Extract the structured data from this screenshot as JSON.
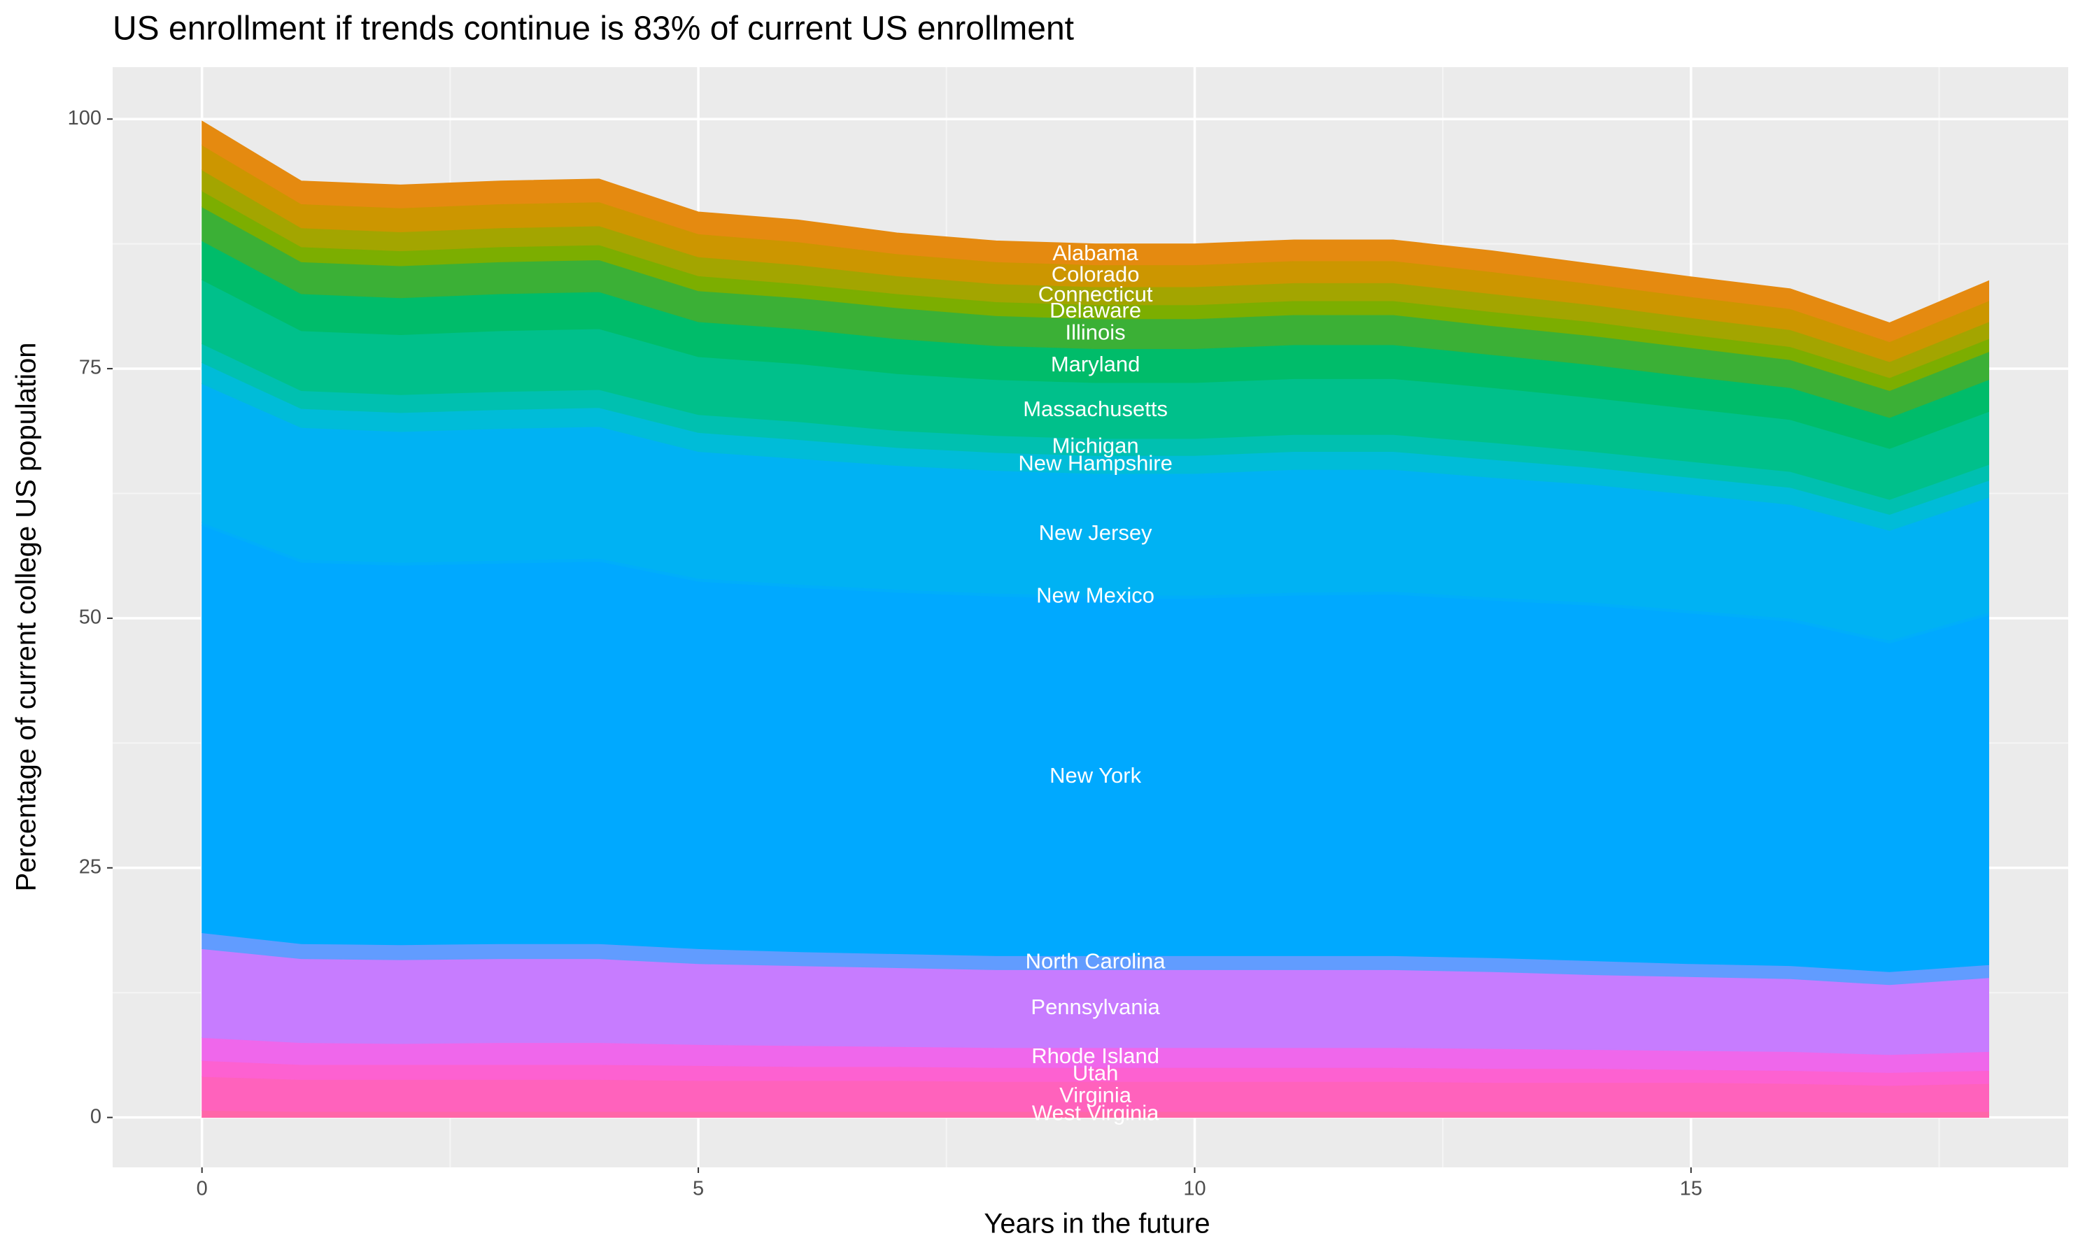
{
  "chart_data": {
    "type": "area",
    "title": "US enrollment if trends continue is 83% of current US enrollment",
    "x_label": "Years in the future",
    "y_label": "Percentage of current college US population",
    "x": [
      0,
      1,
      2,
      3,
      4,
      5,
      6,
      7,
      8,
      9,
      10,
      11,
      12,
      13,
      14,
      15,
      16,
      17,
      18
    ],
    "xlim": [
      -0.9,
      18.8
    ],
    "xticks": [
      0,
      5,
      10,
      15
    ],
    "ylim": [
      -5,
      105.2
    ],
    "yticks": [
      0,
      25,
      50,
      75,
      100
    ],
    "grid": true,
    "series": [
      {
        "name": "West Virginia",
        "color": "#ff66a8",
        "values": [
          0.7,
          0.6,
          0.6,
          0.6,
          0.6,
          0.6,
          0.6,
          0.6,
          0.6,
          0.6,
          0.6,
          0.6,
          0.6,
          0.6,
          0.6,
          0.6,
          0.6,
          0.5,
          0.6
        ]
      },
      {
        "name": "Virginia",
        "color": "#ff62bc",
        "values": [
          3.4,
          3.2,
          3.2,
          3.2,
          3.2,
          3.1,
          3.1,
          3.1,
          3.0,
          3.0,
          3.0,
          3.0,
          3.0,
          2.9,
          2.9,
          2.9,
          2.8,
          2.7,
          2.8
        ]
      },
      {
        "name": "Utah",
        "color": "#fd61d1",
        "values": [
          1.6,
          1.5,
          1.5,
          1.5,
          1.5,
          1.5,
          1.4,
          1.4,
          1.4,
          1.4,
          1.4,
          1.4,
          1.4,
          1.4,
          1.4,
          1.3,
          1.3,
          1.3,
          1.3
        ]
      },
      {
        "name": "Rhode Island",
        "color": "#ef67eb",
        "values": [
          2.3,
          2.2,
          2.1,
          2.2,
          2.2,
          2.1,
          2.1,
          2.0,
          2.0,
          2.0,
          2.0,
          2.0,
          2.0,
          2.0,
          1.9,
          1.9,
          1.9,
          1.8,
          1.9
        ]
      },
      {
        "name": "Pennsylvania",
        "color": "#c77cff",
        "values": [
          8.9,
          8.4,
          8.4,
          8.4,
          8.4,
          8.1,
          8.0,
          7.9,
          7.8,
          7.8,
          7.8,
          7.8,
          7.8,
          7.7,
          7.5,
          7.4,
          7.3,
          7.0,
          7.4
        ]
      },
      {
        "name": "North Carolina",
        "color": "#619cff",
        "values": [
          1.6,
          1.5,
          1.5,
          1.5,
          1.5,
          1.5,
          1.4,
          1.4,
          1.4,
          1.4,
          1.4,
          1.4,
          1.4,
          1.4,
          1.4,
          1.3,
          1.3,
          1.3,
          1.3
        ]
      },
      {
        "name": "New York",
        "color": "#00a9ff",
        "values": [
          40.8,
          38.2,
          38.0,
          38.1,
          38.3,
          36.8,
          36.5,
          36.2,
          36.0,
          35.8,
          35.8,
          36.1,
          36.2,
          35.8,
          35.6,
          35.1,
          34.5,
          32.9,
          35.0
        ]
      },
      {
        "name": "New Mexico",
        "color": "#00aefa",
        "values": [
          0.3,
          0.3,
          0.3,
          0.3,
          0.3,
          0.3,
          0.3,
          0.3,
          0.3,
          0.3,
          0.3,
          0.3,
          0.3,
          0.3,
          0.3,
          0.3,
          0.3,
          0.3,
          0.3
        ]
      },
      {
        "name": "New Jersey",
        "color": "#00b2f3",
        "values": [
          13.9,
          13.2,
          13.1,
          13.2,
          13.2,
          12.7,
          12.6,
          12.4,
          12.3,
          12.2,
          12.2,
          12.3,
          12.2,
          12.0,
          11.8,
          11.6,
          11.4,
          11.0,
          11.5
        ]
      },
      {
        "name": "New Hampshire",
        "color": "#00bcd8",
        "values": [
          2.1,
          1.9,
          1.9,
          1.9,
          1.9,
          1.9,
          1.9,
          1.8,
          1.8,
          1.8,
          1.8,
          1.8,
          1.8,
          1.8,
          1.7,
          1.7,
          1.7,
          1.6,
          1.7
        ]
      },
      {
        "name": "Michigan",
        "color": "#00c0b0",
        "values": [
          1.9,
          1.8,
          1.8,
          1.8,
          1.8,
          1.8,
          1.8,
          1.7,
          1.7,
          1.7,
          1.7,
          1.7,
          1.7,
          1.7,
          1.6,
          1.6,
          1.6,
          1.5,
          1.6
        ]
      },
      {
        "name": "Massachusetts",
        "color": "#00c08b",
        "values": [
          6.4,
          6.0,
          6.0,
          6.1,
          6.1,
          5.8,
          5.8,
          5.7,
          5.6,
          5.6,
          5.6,
          5.6,
          5.6,
          5.5,
          5.4,
          5.3,
          5.2,
          5.1,
          5.3
        ]
      },
      {
        "name": "Maryland",
        "color": "#00bc6a",
        "values": [
          3.9,
          3.7,
          3.7,
          3.7,
          3.7,
          3.5,
          3.5,
          3.5,
          3.4,
          3.4,
          3.4,
          3.4,
          3.4,
          3.3,
          3.3,
          3.2,
          3.2,
          3.1,
          3.2
        ]
      },
      {
        "name": "Illinois",
        "color": "#3bb036",
        "values": [
          3.4,
          3.2,
          3.2,
          3.2,
          3.2,
          3.1,
          3.1,
          3.1,
          3.0,
          3.0,
          3.0,
          3.0,
          3.0,
          2.9,
          2.9,
          2.9,
          2.8,
          2.7,
          2.8
        ]
      },
      {
        "name": "Delaware",
        "color": "#7cae00",
        "values": [
          1.6,
          1.5,
          1.5,
          1.5,
          1.5,
          1.5,
          1.4,
          1.4,
          1.4,
          1.4,
          1.4,
          1.4,
          1.4,
          1.4,
          1.4,
          1.3,
          1.3,
          1.3,
          1.3
        ]
      },
      {
        "name": "Connecticut",
        "color": "#a3a500",
        "values": [
          2.1,
          1.9,
          1.9,
          1.9,
          1.9,
          1.9,
          1.9,
          1.8,
          1.8,
          1.8,
          1.8,
          1.8,
          1.8,
          1.8,
          1.7,
          1.7,
          1.7,
          1.6,
          1.7
        ]
      },
      {
        "name": "Colorado",
        "color": "#cc9600",
        "values": [
          2.5,
          2.4,
          2.4,
          2.4,
          2.4,
          2.3,
          2.3,
          2.2,
          2.2,
          2.2,
          2.2,
          2.2,
          2.2,
          2.2,
          2.1,
          2.1,
          2.1,
          2.0,
          2.1
        ]
      },
      {
        "name": "Alabama",
        "color": "#e58a10",
        "values": [
          2.4,
          2.3,
          2.3,
          2.3,
          2.3,
          2.2,
          2.2,
          2.1,
          2.1,
          2.1,
          2.1,
          2.1,
          2.1,
          2.1,
          2.0,
          2.0,
          2.0,
          1.9,
          2.0
        ]
      }
    ]
  }
}
